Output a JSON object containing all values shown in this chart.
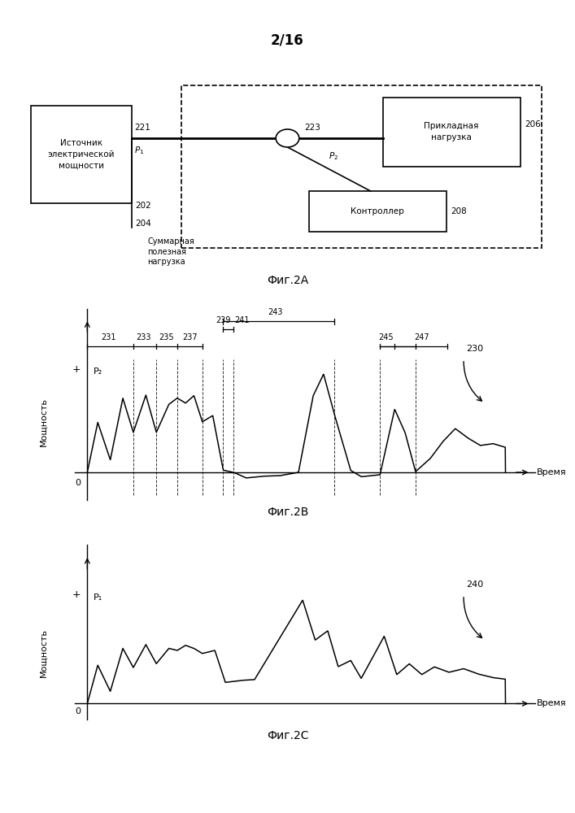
{
  "page_label": "2/16",
  "fig2a_label": "Фиг.2А",
  "fig2b_label": "Фиг.2В",
  "fig2c_label": "Фиг.2С",
  "source_box_text": "Источник\nэлектрической\nмощности",
  "load_box_text": "Прикладная\nнагрузка",
  "controller_box_text": "Контроллер",
  "label_summ": "Суммарная\nполезная\nнагрузка",
  "ylabel_2b": "Мощность",
  "xlabel_2b": "Время",
  "ylabel_2c": "Мощность",
  "xlabel_2c": "Время",
  "label_230": "230",
  "label_240": "240",
  "label_P2_2b": "P₂",
  "label_P1_2c": "P₁",
  "color_black": "#000000",
  "color_white": "#ffffff",
  "bg_color": "#ffffff"
}
